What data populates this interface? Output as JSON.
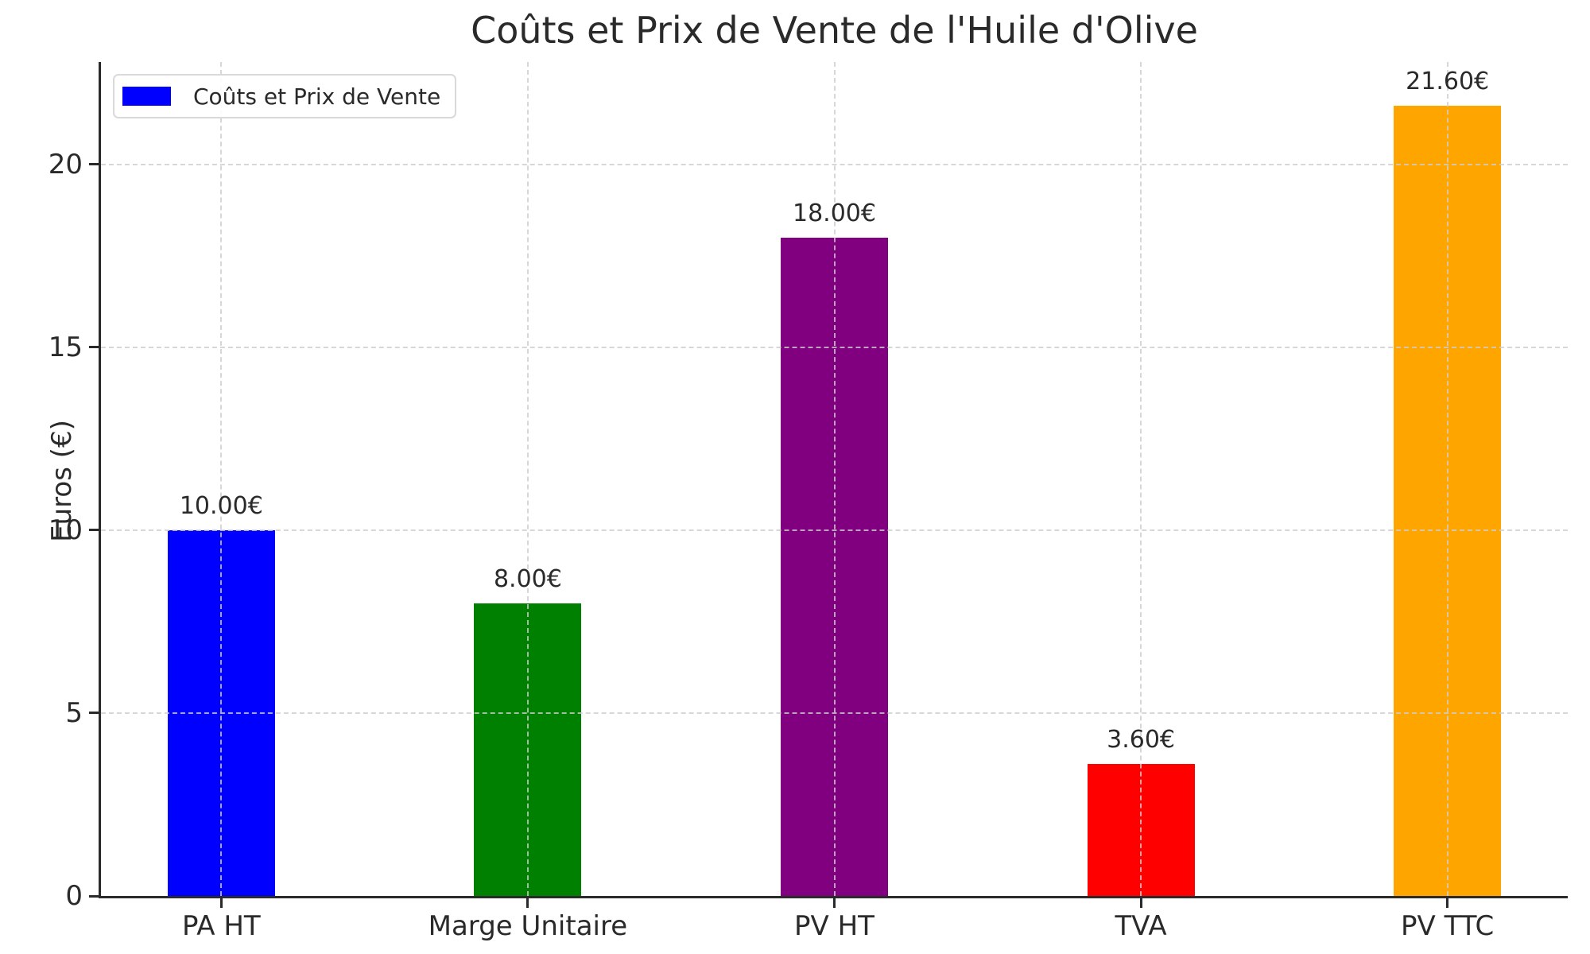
{
  "chart_data": {
    "type": "bar",
    "title": "Coûts et Prix de Vente de l'Huile d'Olive",
    "ylabel": "Euros (€)",
    "xlabel": "",
    "categories": [
      "PA HT",
      "Marge Unitaire",
      "PV HT",
      "TVA",
      "PV TTC"
    ],
    "values": [
      10,
      8,
      18,
      3.6,
      21.6
    ],
    "bar_labels": [
      "10.00€",
      "8.00€",
      "18.00€",
      "3.60€",
      "21.60€"
    ],
    "bar_colors": [
      "#0000ff",
      "#008000",
      "#800080",
      "#ff0000",
      "#ffa500"
    ],
    "yticks": [
      0,
      5,
      10,
      15,
      20
    ],
    "ytick_labels": [
      "0",
      "5",
      "10",
      "15",
      "20"
    ],
    "ylim": [
      0,
      22.8
    ],
    "grid": true,
    "grid_style": "dashed",
    "legend": {
      "label": "Coûts et Prix de Vente",
      "swatch_color": "#0000ff",
      "position": "upper left"
    },
    "axis_color": "#2a2a2a",
    "gridline_color": "#cdcdcd",
    "background_color": "#ffffff"
  }
}
